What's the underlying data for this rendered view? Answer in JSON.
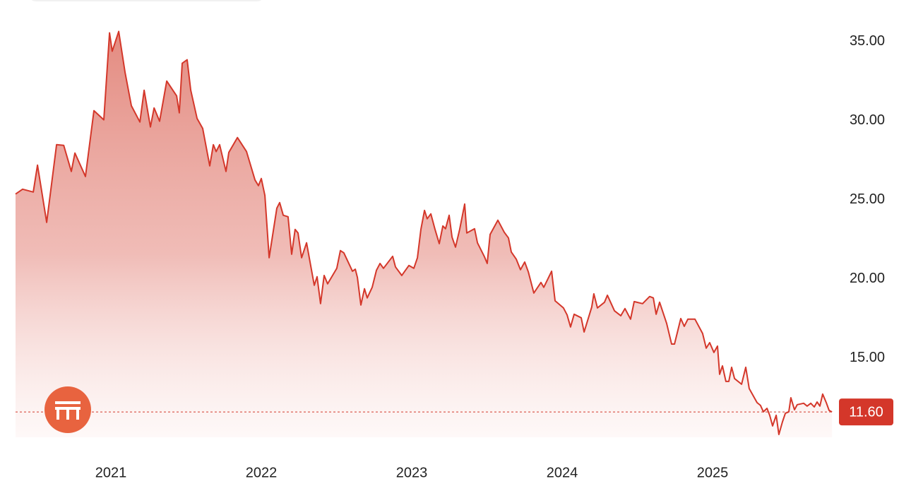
{
  "chart_data": {
    "type": "area",
    "x": [
      2020.366,
      2020.413,
      2020.484,
      2020.512,
      2020.573,
      2020.639,
      2020.686,
      2020.737,
      2020.761,
      2020.831,
      2020.887,
      2020.953,
      2020.991,
      2021.009,
      2021.052,
      2021.094,
      2021.136,
      2021.193,
      2021.221,
      2021.263,
      2021.287,
      2021.324,
      2021.371,
      2021.437,
      2021.455,
      2021.474,
      2021.507,
      2021.531,
      2021.573,
      2021.61,
      2021.657,
      2021.681,
      2021.7,
      2021.723,
      2021.765,
      2021.784,
      2021.841,
      2021.902,
      2021.958,
      2021.981,
      2022.0,
      2022.024,
      2022.052,
      2022.103,
      2022.122,
      2022.146,
      2022.178,
      2022.202,
      2022.225,
      2022.244,
      2022.268,
      2022.301,
      2022.352,
      2022.371,
      2022.394,
      2022.418,
      2022.441,
      2022.502,
      2022.526,
      2022.549,
      2022.606,
      2022.625,
      2022.639,
      2022.662,
      2022.686,
      2022.704,
      2022.737,
      2022.765,
      2022.789,
      2022.812,
      2022.873,
      2022.892,
      2022.934,
      2022.981,
      2023.014,
      2023.038,
      2023.061,
      2023.085,
      2023.103,
      2023.127,
      2023.155,
      2023.183,
      2023.207,
      2023.225,
      2023.249,
      2023.268,
      2023.291,
      2023.319,
      2023.352,
      2023.366,
      2023.418,
      2023.437,
      2023.484,
      2023.502,
      2023.521,
      2023.573,
      2023.615,
      2023.643,
      2023.662,
      2023.695,
      2023.723,
      2023.751,
      2023.775,
      2023.812,
      2023.859,
      2023.878,
      2023.93,
      2023.953,
      2024.009,
      2024.033,
      2024.056,
      2024.08,
      2024.127,
      2024.146,
      2024.197,
      2024.211,
      2024.235,
      2024.282,
      2024.301,
      2024.348,
      2024.39,
      2024.418,
      2024.455,
      2024.479,
      2024.535,
      2024.582,
      2024.606,
      2024.625,
      2024.648,
      2024.695,
      2024.728,
      2024.747,
      2024.789,
      2024.812,
      2024.836,
      2024.883,
      2024.934,
      2024.958,
      2024.981,
      2025.009,
      2025.033,
      2025.047,
      2025.066,
      2025.089,
      2025.108,
      2025.127,
      2025.146,
      2025.193,
      2025.221,
      2025.244,
      2025.296,
      2025.319,
      2025.338,
      2025.362,
      2025.38,
      2025.399,
      2025.423,
      2025.441,
      2025.465,
      2025.484,
      2025.507,
      2025.521,
      2025.545,
      2025.563,
      2025.606,
      2025.629,
      2025.653,
      2025.676,
      2025.695,
      2025.714,
      2025.732,
      2025.756,
      2025.775,
      2025.794
    ],
    "values": [
      25.36,
      25.67,
      25.49,
      27.19,
      23.57,
      28.48,
      28.44,
      26.79,
      27.95,
      26.47,
      30.63,
      30.05,
      35.54,
      34.38,
      35.63,
      33.04,
      30.94,
      29.91,
      31.92,
      29.6,
      30.8,
      29.96,
      32.5,
      31.56,
      30.49,
      33.62,
      33.84,
      31.92,
      30.13,
      29.51,
      27.14,
      28.48,
      28.04,
      28.48,
      26.79,
      27.99,
      28.93,
      28.04,
      26.25,
      25.89,
      26.34,
      25.27,
      21.34,
      24.47,
      24.82,
      24.02,
      23.93,
      21.56,
      23.13,
      22.9,
      21.34,
      22.28,
      19.6,
      20.14,
      18.44,
      20.22,
      19.69,
      20.67,
      21.79,
      21.65,
      20.49,
      20.62,
      20.09,
      18.35,
      19.38,
      18.8,
      19.47,
      20.54,
      20.98,
      20.67,
      21.43,
      20.76,
      20.22,
      20.85,
      20.67,
      21.34,
      23.13,
      24.33,
      23.8,
      24.11,
      23.13,
      22.23,
      23.35,
      23.17,
      24.02,
      22.64,
      22.01,
      23.13,
      24.73,
      22.9,
      23.17,
      22.28,
      21.39,
      20.98,
      22.81,
      23.71,
      22.95,
      22.59,
      21.7,
      21.25,
      20.58,
      21.07,
      20.45,
      19.11,
      19.78,
      19.47,
      20.49,
      18.62,
      18.17,
      17.73,
      16.97,
      17.77,
      17.55,
      16.65,
      18.22,
      19.06,
      18.17,
      18.53,
      18.97,
      17.99,
      17.68,
      18.13,
      17.46,
      18.57,
      18.44,
      18.89,
      18.8,
      17.77,
      18.53,
      17.19,
      15.89,
      15.89,
      17.5,
      17.01,
      17.46,
      17.46,
      16.56,
      15.63,
      15.98,
      15.36,
      15.76,
      13.98,
      14.51,
      13.53,
      13.53,
      14.42,
      13.71,
      13.35,
      14.42,
      13.08,
      12.19,
      12.01,
      11.61,
      11.83,
      11.39,
      10.72,
      11.39,
      10.18,
      10.98,
      11.52,
      11.61,
      12.5,
      11.74,
      12.06,
      12.15,
      11.97,
      12.15,
      11.92,
      12.23,
      11.97,
      12.73,
      12.19,
      11.7,
      11.6
    ],
    "color": "#d4372a",
    "xlim": [
      2020.366,
      2025.803
    ],
    "xticks": [
      2021,
      2022,
      2023,
      2024,
      2025
    ],
    "ylim": [
      10,
      36.5
    ],
    "yticks": [
      {
        "value": 15,
        "label": "15.00"
      },
      {
        "value": 20,
        "label": "20.00"
      },
      {
        "value": 25,
        "label": "25.00"
      },
      {
        "value": 30,
        "label": "30.00"
      },
      {
        "value": 35,
        "label": "35.00"
      }
    ],
    "reference_line": {
      "value": 11.6,
      "label": "11.60"
    }
  }
}
